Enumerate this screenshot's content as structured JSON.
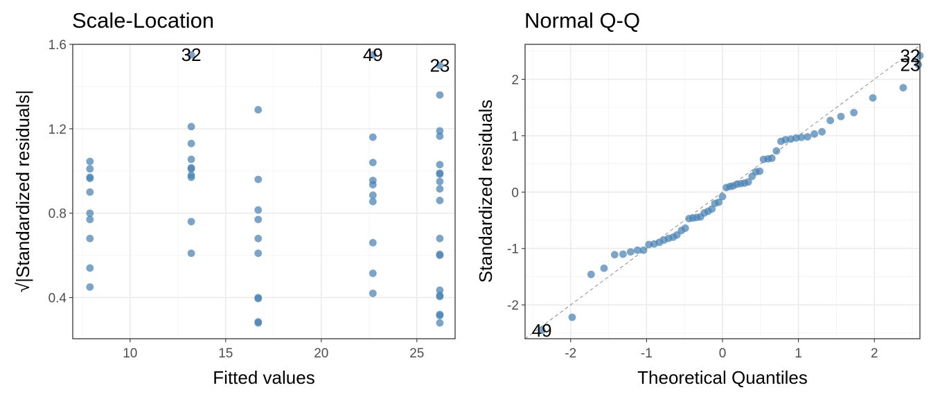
{
  "chart_data": [
    {
      "type": "scatter",
      "title": "Scale-Location",
      "xlabel": "Fitted values",
      "ylabel": "√|Standardized residuals|",
      "xlim": [
        7.0,
        27.0
      ],
      "ylim": [
        0.205,
        1.6
      ],
      "x_ticks": [
        10,
        15,
        20,
        25
      ],
      "y_ticks": [
        0.4,
        0.8,
        1.2,
        1.6
      ],
      "y_tick_labels": [
        "0.4",
        "0.8",
        "1.2",
        "1.6"
      ],
      "grid": true,
      "point_color": "#4682b4",
      "points": [
        {
          "x": 7.9,
          "y": 1.045
        },
        {
          "x": 7.9,
          "y": 1.01
        },
        {
          "x": 7.9,
          "y": 0.97
        },
        {
          "x": 7.9,
          "y": 0.965
        },
        {
          "x": 7.9,
          "y": 0.9
        },
        {
          "x": 7.9,
          "y": 0.8
        },
        {
          "x": 7.9,
          "y": 0.77
        },
        {
          "x": 7.9,
          "y": 0.68
        },
        {
          "x": 7.9,
          "y": 0.54
        },
        {
          "x": 7.9,
          "y": 0.45
        },
        {
          "x": 13.2,
          "y": 1.55
        },
        {
          "x": 13.2,
          "y": 1.21
        },
        {
          "x": 13.2,
          "y": 1.13
        },
        {
          "x": 13.2,
          "y": 1.055
        },
        {
          "x": 13.2,
          "y": 1.015
        },
        {
          "x": 13.2,
          "y": 1.01
        },
        {
          "x": 13.2,
          "y": 0.98
        },
        {
          "x": 13.2,
          "y": 0.97
        },
        {
          "x": 13.2,
          "y": 0.76
        },
        {
          "x": 13.2,
          "y": 0.61
        },
        {
          "x": 16.7,
          "y": 1.29
        },
        {
          "x": 16.7,
          "y": 0.96
        },
        {
          "x": 16.7,
          "y": 0.815
        },
        {
          "x": 16.7,
          "y": 0.77
        },
        {
          "x": 16.7,
          "y": 0.68
        },
        {
          "x": 16.7,
          "y": 0.61
        },
        {
          "x": 16.7,
          "y": 0.4
        },
        {
          "x": 16.7,
          "y": 0.395
        },
        {
          "x": 16.7,
          "y": 0.285
        },
        {
          "x": 16.7,
          "y": 0.28
        },
        {
          "x": 22.7,
          "y": 1.55
        },
        {
          "x": 22.7,
          "y": 1.16
        },
        {
          "x": 22.7,
          "y": 1.04
        },
        {
          "x": 22.7,
          "y": 0.955
        },
        {
          "x": 22.7,
          "y": 0.935
        },
        {
          "x": 22.7,
          "y": 0.885
        },
        {
          "x": 22.7,
          "y": 0.855
        },
        {
          "x": 22.7,
          "y": 0.66
        },
        {
          "x": 22.7,
          "y": 0.515
        },
        {
          "x": 22.7,
          "y": 0.42
        },
        {
          "x": 26.2,
          "y": 1.5
        },
        {
          "x": 26.2,
          "y": 1.36
        },
        {
          "x": 26.2,
          "y": 1.19
        },
        {
          "x": 26.2,
          "y": 1.165
        },
        {
          "x": 26.2,
          "y": 1.03
        },
        {
          "x": 26.2,
          "y": 0.99
        },
        {
          "x": 26.2,
          "y": 0.985
        },
        {
          "x": 26.2,
          "y": 0.95
        },
        {
          "x": 26.2,
          "y": 0.915
        },
        {
          "x": 26.2,
          "y": 0.86
        },
        {
          "x": 26.2,
          "y": 0.68
        },
        {
          "x": 26.2,
          "y": 0.605
        },
        {
          "x": 26.2,
          "y": 0.6
        },
        {
          "x": 26.2,
          "y": 0.435
        },
        {
          "x": 26.2,
          "y": 0.41
        },
        {
          "x": 26.2,
          "y": 0.405
        },
        {
          "x": 26.2,
          "y": 0.32
        },
        {
          "x": 26.2,
          "y": 0.315
        },
        {
          "x": 26.2,
          "y": 0.28
        }
      ],
      "annotations": [
        {
          "text": "32",
          "x": 13.2,
          "y": 1.55
        },
        {
          "text": "49",
          "x": 22.7,
          "y": 1.55
        },
        {
          "text": "23",
          "x": 26.2,
          "y": 1.5
        }
      ]
    },
    {
      "type": "scatter",
      "title": "Normal Q-Q",
      "xlabel": "Theoretical Quantiles",
      "ylabel": "Standardized residuals",
      "xlim": [
        -2.6,
        2.6
      ],
      "ylim": [
        -2.6,
        2.62
      ],
      "x_ticks": [
        -2,
        -1,
        0,
        1,
        2
      ],
      "y_ticks": [
        -2,
        -1,
        0,
        1,
        2
      ],
      "x_tick_labels": [
        "-2",
        "-1",
        "0",
        "1",
        "2"
      ],
      "y_tick_labels": [
        "-2",
        "-1",
        "0",
        "1",
        "2"
      ],
      "grid": true,
      "point_color": "#4682b4",
      "reference_line": {
        "slope": 1,
        "intercept": 0,
        "style": "dashed"
      },
      "points": [
        {
          "x": -2.38,
          "y": -2.45
        },
        {
          "x": -1.98,
          "y": -2.22
        },
        {
          "x": -1.73,
          "y": -1.46
        },
        {
          "x": -1.56,
          "y": -1.35
        },
        {
          "x": -1.42,
          "y": -1.11
        },
        {
          "x": -1.31,
          "y": -1.1
        },
        {
          "x": -1.21,
          "y": -1.06
        },
        {
          "x": -1.12,
          "y": -1.03
        },
        {
          "x": -1.04,
          "y": -1.03
        },
        {
          "x": -0.97,
          "y": -0.93
        },
        {
          "x": -0.9,
          "y": -0.92
        },
        {
          "x": -0.83,
          "y": -0.89
        },
        {
          "x": -0.77,
          "y": -0.85
        },
        {
          "x": -0.71,
          "y": -0.82
        },
        {
          "x": -0.65,
          "y": -0.8
        },
        {
          "x": -0.6,
          "y": -0.76
        },
        {
          "x": -0.54,
          "y": -0.68
        },
        {
          "x": -0.49,
          "y": -0.64
        },
        {
          "x": -0.44,
          "y": -0.47
        },
        {
          "x": -0.39,
          "y": -0.46
        },
        {
          "x": -0.34,
          "y": -0.45
        },
        {
          "x": -0.29,
          "y": -0.44
        },
        {
          "x": -0.24,
          "y": -0.37
        },
        {
          "x": -0.19,
          "y": -0.34
        },
        {
          "x": -0.14,
          "y": -0.3
        },
        {
          "x": -0.1,
          "y": -0.2
        },
        {
          "x": -0.05,
          "y": -0.18
        },
        {
          "x": 0.0,
          "y": -0.08
        },
        {
          "x": 0.05,
          "y": 0.08
        },
        {
          "x": 0.1,
          "y": 0.1
        },
        {
          "x": 0.14,
          "y": 0.11
        },
        {
          "x": 0.19,
          "y": 0.14
        },
        {
          "x": 0.24,
          "y": 0.15
        },
        {
          "x": 0.29,
          "y": 0.16
        },
        {
          "x": 0.34,
          "y": 0.18
        },
        {
          "x": 0.39,
          "y": 0.28
        },
        {
          "x": 0.44,
          "y": 0.36
        },
        {
          "x": 0.49,
          "y": 0.37
        },
        {
          "x": 0.54,
          "y": 0.58
        },
        {
          "x": 0.6,
          "y": 0.59
        },
        {
          "x": 0.65,
          "y": 0.6
        },
        {
          "x": 0.71,
          "y": 0.73
        },
        {
          "x": 0.77,
          "y": 0.9
        },
        {
          "x": 0.83,
          "y": 0.93
        },
        {
          "x": 0.9,
          "y": 0.94
        },
        {
          "x": 0.97,
          "y": 0.96
        },
        {
          "x": 1.04,
          "y": 0.97
        },
        {
          "x": 1.12,
          "y": 0.98
        },
        {
          "x": 1.21,
          "y": 1.03
        },
        {
          "x": 1.31,
          "y": 1.07
        },
        {
          "x": 1.42,
          "y": 1.27
        },
        {
          "x": 1.56,
          "y": 1.34
        },
        {
          "x": 1.73,
          "y": 1.41
        },
        {
          "x": 1.98,
          "y": 1.67
        },
        {
          "x": 2.38,
          "y": 1.85
        },
        {
          "x": 2.58,
          "y": 2.26
        },
        {
          "x": 2.65,
          "y": 2.42
        }
      ],
      "annotations": [
        {
          "text": "49",
          "x": -2.38,
          "y": -2.45
        },
        {
          "text": "23",
          "x": 2.58,
          "y": 2.26
        },
        {
          "text": "32",
          "x": 2.65,
          "y": 2.42
        }
      ]
    }
  ]
}
